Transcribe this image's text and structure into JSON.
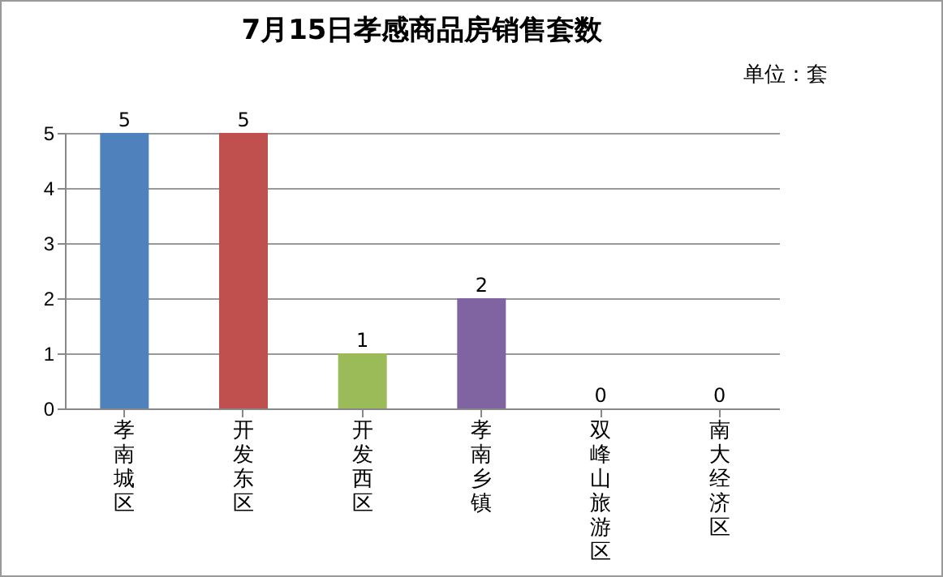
{
  "chart_data": {
    "type": "bar",
    "title": "7月15日孝感商品房销售套数",
    "subtitle": "单位：套",
    "categories": [
      "孝南城区",
      "开发东区",
      "开发西区",
      "孝南乡镇",
      "双峰山旅游区",
      "南大经济区"
    ],
    "values": [
      5,
      5,
      1,
      2,
      0,
      0
    ],
    "colors": [
      "#4f81bd",
      "#c0504d",
      "#9bbb59",
      "#8064a2",
      "#4bacc6",
      "#f79646"
    ],
    "ylim": [
      0,
      5
    ],
    "yticks": [
      0,
      1,
      2,
      3,
      4,
      5
    ],
    "grid": "y",
    "data_labels": true
  }
}
